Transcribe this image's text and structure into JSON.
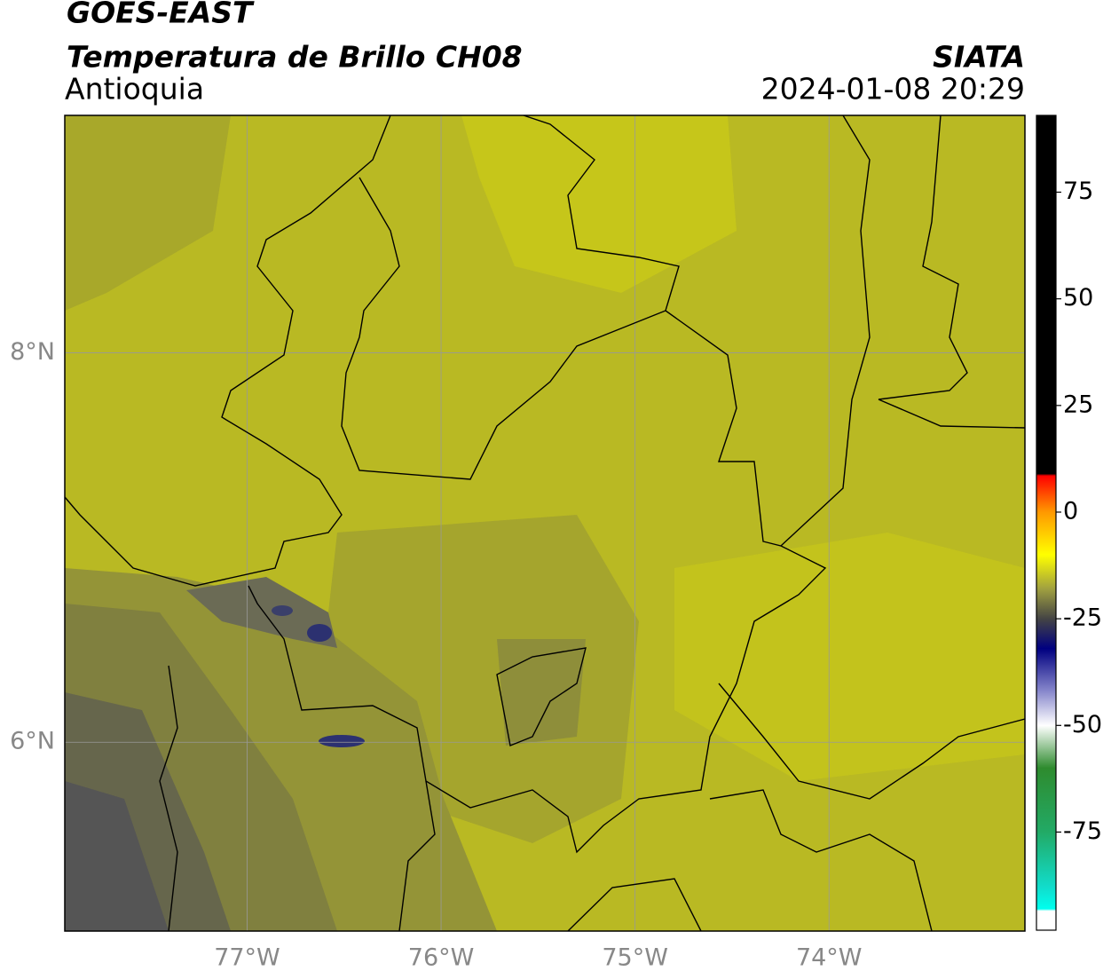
{
  "header": {
    "title": "GOES-EAST",
    "subtitle": "Temperatura de Brillo CH08",
    "region": "Antioquia",
    "source": "SIATA",
    "datetime": "2024-01-08 20:29"
  },
  "map": {
    "xlim": [
      -77.94,
      -72.99
    ],
    "ylim": [
      5.03,
      9.22
    ],
    "xticks": [
      {
        "value": -77,
        "label": "77°W"
      },
      {
        "value": -76,
        "label": "76°W"
      },
      {
        "value": -75,
        "label": "75°W"
      },
      {
        "value": -74,
        "label": "74°W"
      }
    ],
    "yticks": [
      {
        "value": 8,
        "label": "8°N"
      },
      {
        "value": 6,
        "label": "6°N"
      }
    ],
    "grid": true
  },
  "colorbar": {
    "lim": [
      -98,
      93
    ],
    "ticks": [
      75,
      50,
      25,
      0,
      -25,
      -50,
      -75
    ],
    "stops": [
      {
        "value": 93,
        "color": "#000000"
      },
      {
        "value": 9,
        "color": "#000000"
      },
      {
        "value": 8.5,
        "color": "#ff0000"
      },
      {
        "value": 0,
        "color": "#ff9900"
      },
      {
        "value": -10,
        "color": "#ffff00"
      },
      {
        "value": -18,
        "color": "#a0a040"
      },
      {
        "value": -25,
        "color": "#444444"
      },
      {
        "value": -32,
        "color": "#000080"
      },
      {
        "value": -42,
        "color": "#8888cc"
      },
      {
        "value": -50,
        "color": "#ffffff"
      },
      {
        "value": -60,
        "color": "#2e8b2e"
      },
      {
        "value": -75,
        "color": "#22aa66"
      },
      {
        "value": -88,
        "color": "#11ddcc"
      },
      {
        "value": -93,
        "color": "#00ffee"
      },
      {
        "value": -93.5,
        "color": "#ffffff"
      },
      {
        "value": -98,
        "color": "#ffffff"
      }
    ]
  }
}
